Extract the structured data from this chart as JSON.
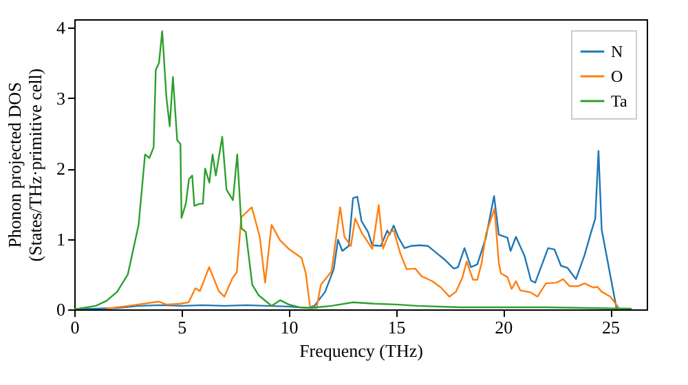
{
  "chart_data": {
    "type": "line",
    "xlabel": "Frequency (THz)",
    "ylabel": "Phonon projected DOS\n(States/THz·primitive cell)",
    "xlim": [
      0,
      26.7
    ],
    "ylim": [
      0,
      4.12
    ],
    "xticks": [
      0,
      5,
      10,
      15,
      20,
      25
    ],
    "yticks": [
      0,
      1,
      2,
      3,
      4
    ],
    "legend": "top right",
    "grid": false,
    "series": [
      {
        "name": "N",
        "color": "#1f77b4",
        "x": [
          0,
          2,
          3,
          4,
          5,
          6,
          7,
          8,
          9,
          10,
          10.9,
          11.2,
          11.7,
          12.1,
          12.3,
          12.5,
          12.8,
          13.0,
          13.2,
          13.4,
          13.7,
          13.9,
          14.3,
          14.6,
          14.7,
          14.9,
          15.1,
          15.4,
          15.7,
          16.1,
          16.5,
          16.9,
          17.3,
          17.7,
          17.9,
          18.2,
          18.5,
          18.8,
          19.2,
          19.58,
          19.8,
          20.2,
          20.35,
          20.6,
          21.0,
          21.3,
          21.5,
          22.1,
          22.4,
          22.7,
          23.0,
          23.4,
          23.8,
          24.1,
          24.3,
          24.45,
          24.6,
          25.3
        ],
        "values": [
          0,
          0.02,
          0.05,
          0.06,
          0.05,
          0.06,
          0.05,
          0.06,
          0.05,
          0.04,
          0.02,
          0.05,
          0.25,
          0.57,
          0.99,
          0.83,
          0.9,
          1.58,
          1.6,
          1.25,
          1.1,
          0.91,
          0.9,
          1.12,
          1.06,
          1.19,
          1.03,
          0.87,
          0.9,
          0.91,
          0.9,
          0.8,
          0.7,
          0.58,
          0.6,
          0.87,
          0.6,
          0.64,
          1.02,
          1.61,
          1.06,
          1.02,
          0.83,
          1.03,
          0.76,
          0.41,
          0.38,
          0.87,
          0.85,
          0.62,
          0.59,
          0.43,
          0.77,
          1.09,
          1.29,
          2.25,
          1.13,
          0
        ]
      },
      {
        "name": "O",
        "color": "#ff7f0e",
        "x": [
          1.5,
          2.53,
          3.93,
          4.3,
          4.94,
          5.33,
          5.65,
          5.86,
          6.29,
          6.74,
          7.0,
          7.37,
          7.58,
          7.79,
          8.28,
          8.65,
          8.9,
          9.2,
          9.6,
          10.0,
          10.6,
          10.8,
          11.0,
          11.3,
          11.5,
          12.0,
          12.4,
          12.6,
          12.9,
          13.1,
          13.4,
          13.9,
          14.2,
          14.4,
          14.7,
          14.9,
          15.2,
          15.5,
          15.9,
          16.2,
          16.7,
          17.1,
          17.5,
          17.8,
          18.1,
          18.3,
          18.6,
          18.8,
          19.0,
          19.2,
          19.6,
          19.8,
          19.9,
          20.2,
          20.4,
          20.6,
          20.8,
          21.3,
          21.6,
          22.0,
          22.5,
          22.8,
          23.1,
          23.5,
          23.8,
          24.2,
          24.4,
          24.6,
          25.0,
          25.4
        ],
        "values": [
          0.01,
          0.05,
          0.11,
          0.07,
          0.08,
          0.1,
          0.3,
          0.26,
          0.6,
          0.26,
          0.18,
          0.44,
          0.53,
          1.31,
          1.45,
          1.03,
          0.38,
          1.2,
          0.98,
          0.86,
          0.73,
          0.51,
          0.02,
          0.02,
          0.35,
          0.54,
          1.45,
          1.03,
          0.9,
          1.29,
          1.09,
          0.86,
          1.48,
          0.86,
          1.09,
          1.12,
          0.8,
          0.57,
          0.58,
          0.47,
          0.4,
          0.31,
          0.18,
          0.25,
          0.45,
          0.68,
          0.42,
          0.42,
          0.66,
          1.07,
          1.43,
          0.66,
          0.51,
          0.46,
          0.29,
          0.4,
          0.27,
          0.24,
          0.18,
          0.37,
          0.38,
          0.43,
          0.33,
          0.33,
          0.37,
          0.31,
          0.32,
          0.25,
          0.18,
          0.02
        ]
      },
      {
        "name": "Ta",
        "color": "#2ca02c",
        "x": [
          0,
          1,
          1.5,
          2,
          2.5,
          3,
          3.3,
          3.5,
          3.7,
          3.8,
          3.95,
          4.1,
          4.3,
          4.45,
          4.6,
          4.8,
          4.95,
          5.0,
          5.2,
          5.35,
          5.5,
          5.6,
          5.85,
          6.0,
          6.1,
          6.3,
          6.45,
          6.6,
          6.9,
          7.1,
          7.4,
          7.6,
          7.8,
          8.0,
          8.3,
          8.6,
          9.0,
          9.2,
          9.6,
          10,
          10.5,
          11,
          12,
          13,
          14,
          15,
          16,
          18,
          20,
          22,
          24,
          26
        ],
        "values": [
          0,
          0.05,
          0.12,
          0.25,
          0.5,
          1.2,
          2.2,
          2.15,
          2.3,
          3.4,
          3.5,
          3.95,
          3.0,
          2.6,
          3.3,
          2.4,
          2.35,
          1.3,
          1.5,
          1.85,
          1.9,
          1.47,
          1.5,
          1.5,
          2.0,
          1.8,
          2.2,
          1.9,
          2.45,
          1.7,
          1.55,
          2.2,
          1.15,
          1.1,
          0.35,
          0.2,
          0.1,
          0.05,
          0.13,
          0.07,
          0.03,
          0.02,
          0.05,
          0.1,
          0.08,
          0.07,
          0.05,
          0.03,
          0.03,
          0.03,
          0.02,
          0.01
        ]
      }
    ]
  }
}
